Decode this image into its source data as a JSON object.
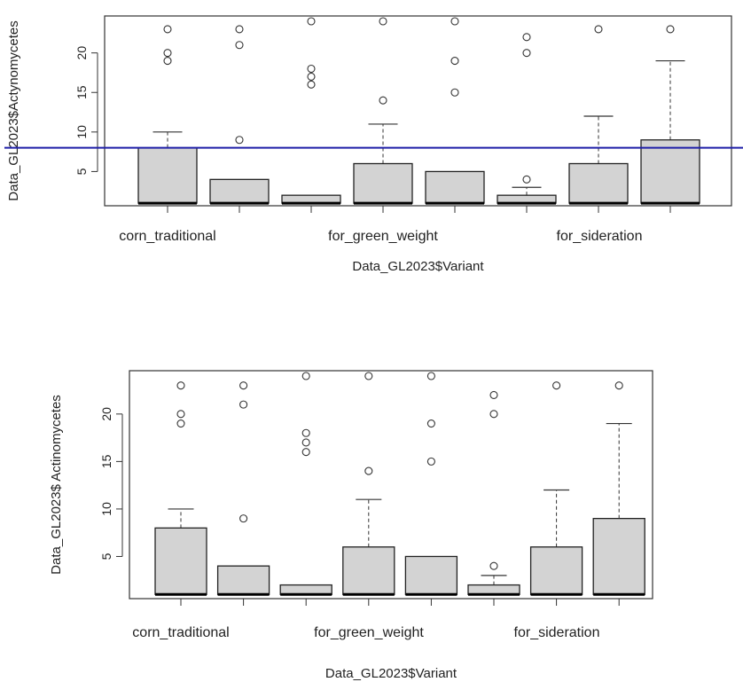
{
  "chart_data": [
    {
      "type": "box",
      "xlabel": "Data_GL2023$Variant",
      "ylabel": "Data_GL2023$Actynomycetes",
      "yticks": [
        5,
        10,
        15,
        20
      ],
      "ylim": [
        0,
        25
      ],
      "xtick_labels": [
        "corn_traditional",
        "for_green_weight",
        "for_sideration"
      ],
      "reference_line": {
        "y": 8,
        "color": "#1f1fa8"
      },
      "boxes": [
        {
          "q1": 1,
          "median": 1,
          "q3": 8,
          "whisker_high": 10,
          "outliers": [
            19,
            20,
            23
          ]
        },
        {
          "q1": 1,
          "median": 1,
          "q3": 4,
          "whisker_high": 4,
          "outliers": [
            9,
            21,
            23
          ]
        },
        {
          "q1": 1,
          "median": 1,
          "q3": 2,
          "whisker_high": 2,
          "outliers": [
            16,
            17,
            18,
            24
          ]
        },
        {
          "q1": 1,
          "median": 1,
          "q3": 6,
          "whisker_high": 11,
          "outliers": [
            14,
            24
          ]
        },
        {
          "q1": 1,
          "median": 1,
          "q3": 5,
          "whisker_high": 5,
          "outliers": [
            15,
            19,
            24
          ]
        },
        {
          "q1": 1,
          "median": 1,
          "q3": 2,
          "whisker_high": 3,
          "outliers": [
            4,
            20,
            22
          ]
        },
        {
          "q1": 1,
          "median": 1,
          "q3": 6,
          "whisker_high": 12,
          "outliers": [
            23
          ]
        },
        {
          "q1": 1,
          "median": 1,
          "q3": 9,
          "whisker_high": 19,
          "outliers": [
            23
          ]
        }
      ]
    },
    {
      "type": "box",
      "xlabel": "Data_GL2023$Variant",
      "ylabel": "Data_GL2023$ Actinomycetes",
      "yticks": [
        5,
        10,
        15,
        20
      ],
      "ylim": [
        0,
        25
      ],
      "xtick_labels": [
        "corn_traditional",
        "for_green_weight",
        "for_sideration"
      ],
      "boxes": [
        {
          "q1": 1,
          "median": 1,
          "q3": 8,
          "whisker_high": 10,
          "outliers": [
            19,
            20,
            23
          ]
        },
        {
          "q1": 1,
          "median": 1,
          "q3": 4,
          "whisker_high": 4,
          "outliers": [
            9,
            21,
            23
          ]
        },
        {
          "q1": 1,
          "median": 1,
          "q3": 2,
          "whisker_high": 2,
          "outliers": [
            16,
            17,
            18,
            24
          ]
        },
        {
          "q1": 1,
          "median": 1,
          "q3": 6,
          "whisker_high": 11,
          "outliers": [
            14,
            24
          ]
        },
        {
          "q1": 1,
          "median": 1,
          "q3": 5,
          "whisker_high": 5,
          "outliers": [
            15,
            19,
            24
          ]
        },
        {
          "q1": 1,
          "median": 1,
          "q3": 2,
          "whisker_high": 3,
          "outliers": [
            4,
            20,
            22
          ]
        },
        {
          "q1": 1,
          "median": 1,
          "q3": 6,
          "whisker_high": 12,
          "outliers": [
            23
          ]
        },
        {
          "q1": 1,
          "median": 1,
          "q3": 9,
          "whisker_high": 19,
          "outliers": [
            23
          ]
        }
      ]
    }
  ]
}
